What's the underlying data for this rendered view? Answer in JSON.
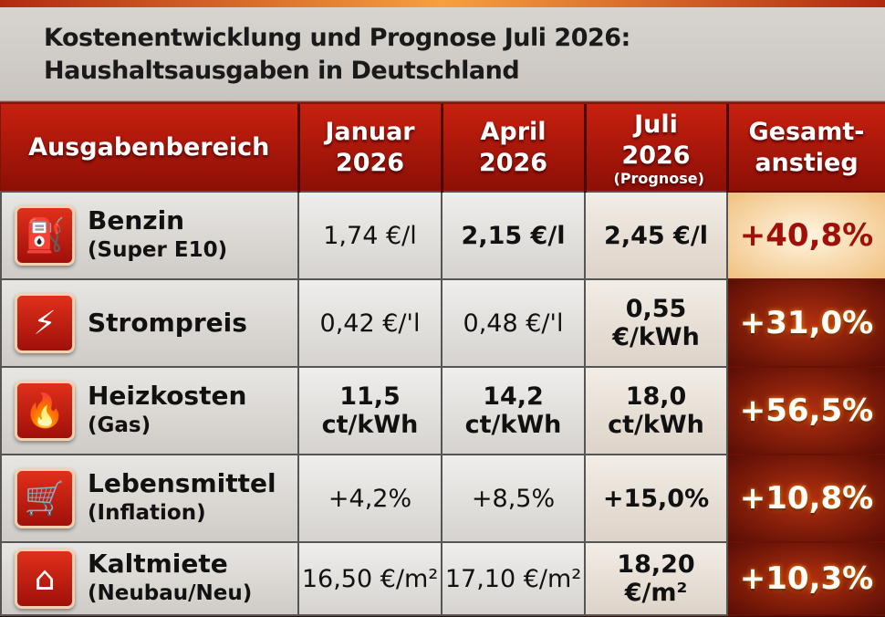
{
  "title": {
    "line1": "Kostenentwicklung und Prognose Juli 2026:",
    "line2": "Haushaltsausgaben in Deutschland"
  },
  "headers": {
    "category": "Ausgabenbereich",
    "jan": "Januar 2026",
    "apr": "April 2026",
    "jul": "Juli 2026",
    "jul_note": "(Prognose)",
    "total": "Gesamt-anstieg"
  },
  "rows": [
    {
      "icon": "fuel-pump-icon",
      "name": "Benzin",
      "sub": "(Super E10)",
      "jan": "1,74 €/l",
      "apr": "2,15 €/l",
      "jul": "2,45 €/l",
      "total": "+40,8%"
    },
    {
      "icon": "lightning-icon",
      "name": "Strompreis",
      "sub": "",
      "jan": "0,42 €/'l",
      "apr": "0,48 €/'l",
      "jul": "0,55 €/kWh",
      "total": "+31,0%"
    },
    {
      "icon": "flame-icon",
      "name": "Heizkosten",
      "sub": "(Gas)",
      "jan": "11,5 ct/kWh",
      "apr": "14,2 ct/kWh",
      "jul": "18,0 ct/kWh",
      "total": "+56,5%"
    },
    {
      "icon": "shopping-cart-icon",
      "name": "Lebensmittel",
      "sub": "(Inflation)",
      "jan": "+4,2%",
      "apr": "+8,5%",
      "jul": "+15,0%",
      "total": "+10,8%"
    },
    {
      "icon": "house-icon",
      "name": "Kaltmiete",
      "sub": "(Neubau/Neu)",
      "jan": "16,50 €/m²",
      "apr": "17,10 €/m²",
      "jul": "18,20 €/m²",
      "total": "+10,3%"
    }
  ],
  "colors": {
    "header_red": "#c8200f",
    "total_text_highlight": "#a01008"
  }
}
